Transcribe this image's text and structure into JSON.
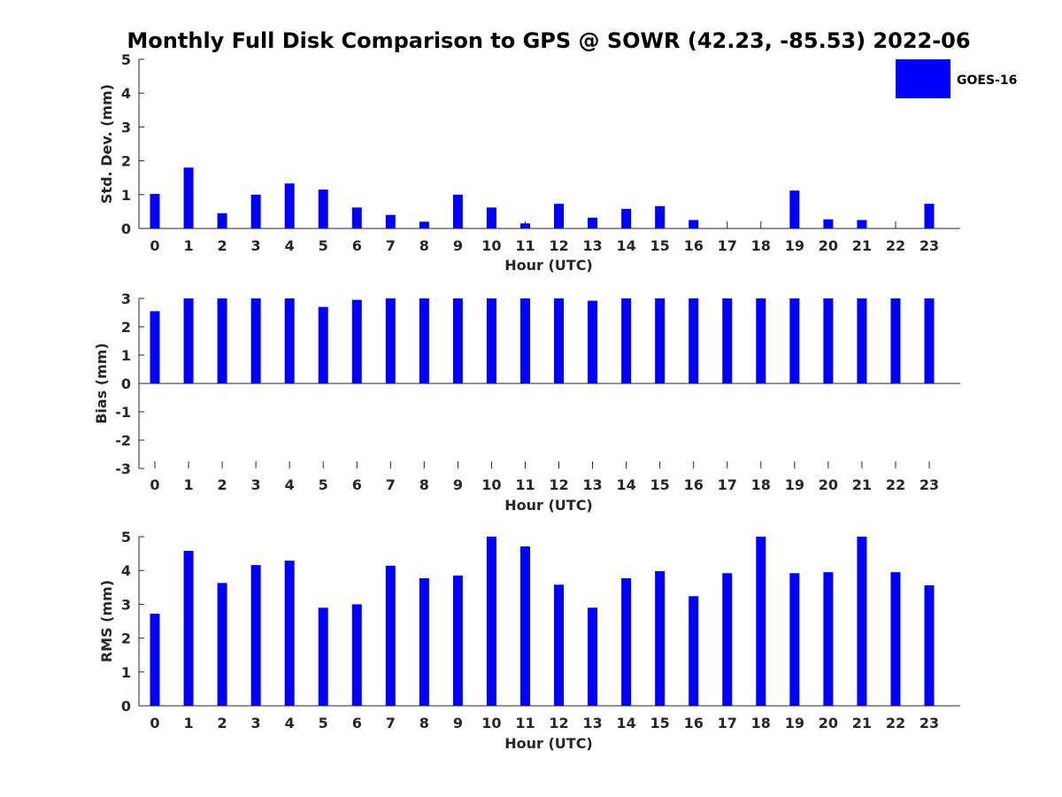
{
  "title": "Monthly Full Disk Comparison to GPS @ SOWR (42.23, -85.53) 2022-06",
  "legend": {
    "label": "GOES-16",
    "color": "#0000ff",
    "placement": "top-right"
  },
  "bar_color": "#0000ff",
  "chart_data": [
    {
      "type": "bar",
      "panel": "std-dev",
      "xlabel": "Hour (UTC)",
      "ylabel": "Std. Dev. (mm)",
      "ylim": [
        0,
        5
      ],
      "yticks": [
        0,
        1,
        2,
        3,
        4,
        5
      ],
      "categories": [
        "0",
        "1",
        "2",
        "3",
        "4",
        "5",
        "6",
        "7",
        "8",
        "9",
        "10",
        "11",
        "12",
        "13",
        "14",
        "15",
        "16",
        "17",
        "18",
        "19",
        "20",
        "21",
        "22",
        "23"
      ],
      "series": [
        {
          "name": "GOES-16",
          "values": [
            1.02,
            1.8,
            0.45,
            1.0,
            1.33,
            1.15,
            0.62,
            0.4,
            0.2,
            1.0,
            0.62,
            0.15,
            0.73,
            0.32,
            0.58,
            0.66,
            0.25,
            0.0,
            0.0,
            1.12,
            0.27,
            0.25,
            0.0,
            0.73
          ]
        }
      ]
    },
    {
      "type": "bar",
      "panel": "bias",
      "xlabel": "Hour (UTC)",
      "ylabel": "Bias (mm)",
      "ylim": [
        -3,
        3
      ],
      "yticks": [
        -3,
        -2,
        -1,
        0,
        1,
        2,
        3
      ],
      "categories": [
        "0",
        "1",
        "2",
        "3",
        "4",
        "5",
        "6",
        "7",
        "8",
        "9",
        "10",
        "11",
        "12",
        "13",
        "14",
        "15",
        "16",
        "17",
        "18",
        "19",
        "20",
        "21",
        "22",
        "23"
      ],
      "series": [
        {
          "name": "GOES-16",
          "values": [
            2.55,
            3.0,
            3.0,
            3.0,
            3.0,
            2.7,
            2.95,
            3.0,
            3.0,
            3.0,
            3.0,
            3.0,
            3.0,
            2.92,
            3.0,
            3.0,
            3.0,
            3.0,
            3.0,
            3.0,
            3.0,
            3.0,
            3.0,
            3.0
          ]
        }
      ]
    },
    {
      "type": "bar",
      "panel": "rms",
      "xlabel": "Hour (UTC)",
      "ylabel": "RMS (mm)",
      "ylim": [
        0,
        5
      ],
      "yticks": [
        0,
        1,
        2,
        3,
        4,
        5
      ],
      "categories": [
        "0",
        "1",
        "2",
        "3",
        "4",
        "5",
        "6",
        "7",
        "8",
        "9",
        "10",
        "11",
        "12",
        "13",
        "14",
        "15",
        "16",
        "17",
        "18",
        "19",
        "20",
        "21",
        "22",
        "23"
      ],
      "series": [
        {
          "name": "GOES-16",
          "values": [
            2.72,
            4.58,
            3.63,
            4.16,
            4.29,
            2.9,
            3.0,
            4.14,
            3.77,
            3.85,
            5.0,
            4.71,
            3.58,
            2.9,
            3.77,
            3.98,
            3.24,
            3.92,
            5.0,
            3.92,
            3.95,
            5.0,
            3.95,
            3.56
          ]
        }
      ]
    }
  ]
}
